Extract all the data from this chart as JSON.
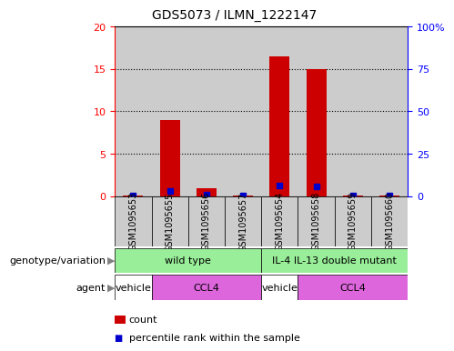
{
  "title": "GDS5073 / ILMN_1222147",
  "samples": [
    "GSM1095653",
    "GSM1095655",
    "GSM1095656",
    "GSM1095657",
    "GSM1095654",
    "GSM1095658",
    "GSM1095659",
    "GSM1095660"
  ],
  "counts": [
    0.05,
    9.0,
    0.9,
    0.05,
    16.5,
    15.0,
    0.05,
    0.05
  ],
  "percentiles": [
    0.5,
    3.0,
    1.0,
    0.4,
    6.3,
    5.7,
    0.3,
    0.3
  ],
  "ylim_left": [
    0,
    20
  ],
  "ylim_right": [
    0,
    100
  ],
  "yticks_left": [
    0,
    5,
    10,
    15,
    20
  ],
  "yticks_right": [
    0,
    25,
    50,
    75,
    100
  ],
  "bar_color": "#cc0000",
  "percentile_color": "#0000cc",
  "cell_bg_color": "#cccccc",
  "genotype_groups": [
    {
      "label": "wild type",
      "start": 0,
      "end": 4,
      "color": "#99ee99"
    },
    {
      "label": "IL-4 IL-13 double mutant",
      "start": 4,
      "end": 8,
      "color": "#99ee99"
    }
  ],
  "agent_groups": [
    {
      "label": "vehicle",
      "start": 0,
      "end": 1,
      "color": "#ffffff"
    },
    {
      "label": "CCL4",
      "start": 1,
      "end": 4,
      "color": "#dd66dd"
    },
    {
      "label": "vehicle",
      "start": 4,
      "end": 5,
      "color": "#ffffff"
    },
    {
      "label": "CCL4",
      "start": 5,
      "end": 8,
      "color": "#dd66dd"
    }
  ],
  "genotype_label": "genotype/variation",
  "agent_label": "agent",
  "legend_count_label": "count",
  "legend_percentile_label": "percentile rank within the sample"
}
